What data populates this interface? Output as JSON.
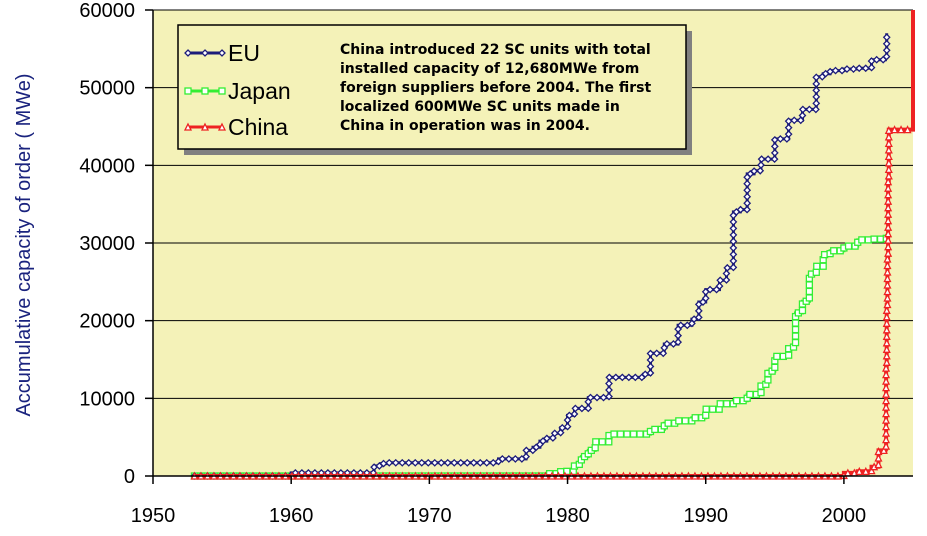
{
  "chart_data": {
    "type": "line",
    "title": "",
    "xlabel": "",
    "ylabel": "Accumulative capacity of order ( MWe)",
    "xlim": [
      1950,
      2005
    ],
    "ylim": [
      0,
      60000
    ],
    "xticks": [
      "1950",
      "1960",
      "1970",
      "1980",
      "1990",
      "2000"
    ],
    "yticks": [
      "0",
      "10000",
      "20000",
      "30000",
      "40000",
      "50000",
      "60000"
    ],
    "grid": true,
    "legend_position": "top-left",
    "background_color": "#f4f2b8",
    "annotation": [
      "China introduced 22 SC units with total",
      "installed capacity of 12,680MWe from",
      "foreign suppliers before 2004. The first",
      "localized 600MWe SC units made in",
      "China in operation was in 2004."
    ],
    "series": [
      {
        "name": "EU",
        "color": "#1c1c7a",
        "marker": "diamond",
        "x": [
          1953,
          1959.5,
          1960,
          1965.5,
          1966,
          1966.5,
          1967,
          1974.5,
          1975,
          1976.5,
          1977,
          1977.5,
          1978,
          1978.5,
          1979,
          1979.5,
          1980,
          1980.5,
          1981.5,
          1983,
          1985.5,
          1986,
          1987,
          1988,
          1989,
          1989.5,
          1990,
          1991,
          1991.5,
          1992,
          1992.5,
          1993,
          1993.5,
          1994,
          1995,
          1996,
          1997,
          1998,
          1998.5,
          1999,
          2000,
          2001,
          2002,
          2003,
          2003.1
        ],
        "y": [
          0,
          0,
          400,
          400,
          1300,
          1600,
          1700,
          1700,
          2200,
          2200,
          3300,
          3700,
          4500,
          4900,
          5500,
          6200,
          7800,
          8700,
          10100,
          12700,
          13100,
          15800,
          17000,
          19400,
          20200,
          22400,
          24000,
          25200,
          26800,
          34000,
          34300,
          38900,
          39300,
          40800,
          43400,
          45800,
          47200,
          51400,
          51800,
          52200,
          52400,
          52500,
          53600,
          54000,
          57000
        ]
      },
      {
        "name": "Japan",
        "color": "#33ee33",
        "marker": "square",
        "x": [
          1953,
          1977.5,
          1978.5,
          1979.5,
          1980.5,
          1981,
          1981.5,
          1982,
          1983,
          1986,
          1987,
          1988,
          1989,
          1990,
          1991,
          1992,
          1993,
          1994,
          1994.5,
          1995,
          1996,
          1996.5,
          1997,
          1997.5,
          1998,
          1998.5,
          1999,
          2000,
          2001,
          2002,
          2003,
          2003.1
        ],
        "y": [
          0,
          0,
          300,
          600,
          1500,
          2500,
          3300,
          4400,
          5400,
          6000,
          6800,
          7100,
          7500,
          8600,
          9300,
          9700,
          10500,
          11800,
          13500,
          15400,
          16600,
          21000,
          22500,
          26000,
          27000,
          28500,
          29000,
          29600,
          30400,
          30500,
          30600,
          31200
        ]
      },
      {
        "name": "China",
        "color": "#ee2222",
        "marker": "triangle",
        "x": [
          1953,
          1999.5,
          2000,
          2001,
          2002,
          2002.5,
          2003,
          2003.05,
          2003.1,
          2003.15,
          2003.2,
          2003.25,
          2005,
          2005
        ],
        "y": [
          0,
          0,
          400,
          600,
          1200,
          3300,
          3500,
          14000,
          22000,
          28000,
          38000,
          44600,
          44600,
          60000
        ]
      }
    ]
  }
}
